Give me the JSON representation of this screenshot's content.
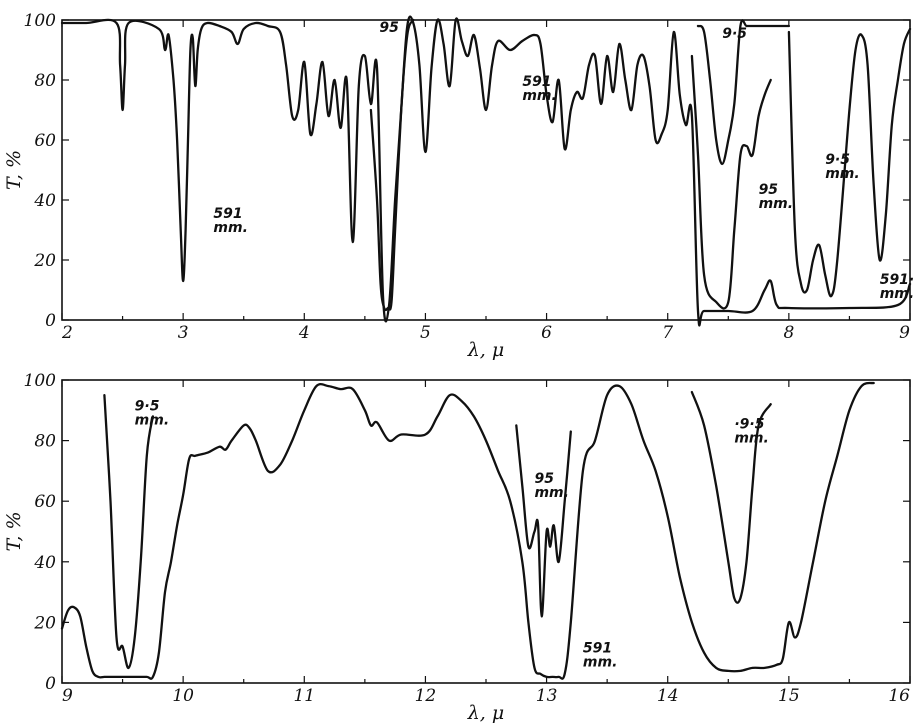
{
  "chart_data": [
    {
      "type": "line",
      "title": "",
      "xlabel": "λ, μ",
      "ylabel": "T, %",
      "xlim": [
        2,
        9
      ],
      "ylim": [
        0,
        100
      ],
      "xticks": [
        "2",
        "3",
        "4",
        "5",
        "6",
        "7",
        "8",
        "9"
      ],
      "yticks": [
        "0",
        "20",
        "40",
        "60",
        "80",
        "100"
      ],
      "grid": false,
      "series": [
        {
          "name": "591 mm.",
          "x": [
            2.0,
            2.2,
            2.45,
            2.48,
            2.5,
            2.52,
            2.55,
            2.8,
            2.85,
            2.88,
            2.92,
            2.95,
            2.98,
            3.0,
            3.02,
            3.04,
            3.06,
            3.08,
            3.1,
            3.12,
            3.15,
            3.2,
            3.3,
            3.4,
            3.45,
            3.5,
            3.6,
            3.7,
            3.8,
            3.85,
            3.9,
            3.95,
            4.0,
            4.05,
            4.1,
            4.15,
            4.2,
            4.25,
            4.3,
            4.35,
            4.4,
            4.45,
            4.5,
            4.55,
            4.6,
            4.65,
            4.7,
            4.75,
            4.8,
            4.85,
            4.9,
            4.95,
            5.0,
            5.05,
            5.1,
            5.15,
            5.2,
            5.25,
            5.3,
            5.35,
            5.4,
            5.45,
            5.5,
            5.55,
            5.6,
            5.7,
            5.8,
            5.9,
            5.95,
            6.0,
            6.05,
            6.1,
            6.15,
            6.2,
            6.25,
            6.3,
            6.35,
            6.4,
            6.45,
            6.5,
            6.55,
            6.6,
            6.65,
            6.7,
            6.75,
            6.8,
            6.85,
            6.9,
            6.95,
            7.0,
            7.05,
            7.1,
            7.15,
            7.2,
            7.25,
            7.3,
            7.5,
            7.7,
            7.8,
            7.85,
            7.9,
            8.0,
            8.5,
            8.9,
            9.0
          ],
          "y": [
            99,
            99,
            99,
            85,
            70,
            85,
            99,
            97,
            90,
            95,
            80,
            60,
            30,
            13,
            30,
            60,
            90,
            94,
            78,
            90,
            97,
            99,
            98,
            96,
            92,
            97,
            99,
            98,
            96,
            85,
            68,
            70,
            86,
            62,
            72,
            86,
            68,
            80,
            64,
            80,
            26,
            78,
            88,
            72,
            84,
            8,
            5,
            40,
            70,
            98,
            99,
            85,
            56,
            84,
            100,
            92,
            78,
            100,
            93,
            88,
            95,
            84,
            70,
            85,
            93,
            90,
            93,
            95,
            92,
            75,
            66,
            80,
            57,
            70,
            76,
            74,
            85,
            88,
            72,
            88,
            76,
            92,
            80,
            70,
            85,
            88,
            78,
            60,
            62,
            70,
            96,
            75,
            65,
            68,
            3,
            3,
            3,
            3,
            10,
            13,
            5,
            4,
            4,
            5,
            12
          ]
        },
        {
          "name": "95 mm.",
          "x": [
            4.55,
            4.6,
            4.63,
            4.66,
            4.69,
            4.72,
            4.75,
            4.8,
            4.85,
            4.9
          ],
          "y": [
            70,
            40,
            12,
            4,
            4,
            6,
            30,
            70,
            95,
            100
          ]
        },
        {
          "name": "95 mm.",
          "x": [
            7.2,
            7.25,
            7.3,
            7.4,
            7.5,
            7.55,
            7.6,
            7.65,
            7.7,
            7.75,
            7.8,
            7.85
          ],
          "y": [
            88,
            55,
            15,
            6,
            6,
            30,
            55,
            58,
            55,
            68,
            75,
            80
          ]
        },
        {
          "name": "9·5",
          "x": [
            7.25,
            7.3,
            7.35,
            7.4,
            7.45,
            7.5,
            7.55,
            7.6,
            7.65,
            7.7,
            7.75,
            7.8,
            7.85,
            7.9,
            7.95,
            8.0
          ],
          "y": [
            98,
            96,
            80,
            60,
            52,
            60,
            72,
            98,
            98,
            98,
            98,
            98,
            98,
            98,
            98,
            98
          ]
        },
        {
          "name": "9·5 mm.",
          "x": [
            8.0,
            8.05,
            8.1,
            8.15,
            8.2,
            8.25,
            8.3,
            8.35,
            8.4,
            8.5,
            8.55,
            8.6,
            8.65,
            8.7,
            8.75,
            8.8,
            8.85,
            8.9,
            8.95,
            9.0
          ],
          "y": [
            96,
            30,
            12,
            10,
            20,
            25,
            15,
            8,
            20,
            70,
            90,
            95,
            85,
            45,
            20,
            35,
            65,
            80,
            92,
            97
          ]
        }
      ],
      "annotations": [
        {
          "text": "591",
          "line2": "mm.",
          "x": 3.25,
          "y": 34
        },
        {
          "text": "95",
          "line2": "",
          "x": 4.62,
          "y": 96
        },
        {
          "text": "591",
          "line2": "mm.",
          "x": 5.8,
          "y": 78
        },
        {
          "text": "9·5",
          "line2": "",
          "x": 7.45,
          "y": 94
        },
        {
          "text": "95",
          "line2": "mm.",
          "x": 7.75,
          "y": 42
        },
        {
          "text": "9·5",
          "line2": "mm.",
          "x": 8.3,
          "y": 52
        },
        {
          "text": "591·",
          "line2": "mm.",
          "x": 8.75,
          "y": 12
        }
      ]
    },
    {
      "type": "line",
      "title": "",
      "xlabel": "λ, μ",
      "ylabel": "T, %",
      "xlim": [
        9,
        16
      ],
      "ylim": [
        0,
        100
      ],
      "xticks": [
        "9",
        "10",
        "11",
        "12",
        "13",
        "14",
        "15",
        "16"
      ],
      "yticks": [
        "0",
        "20",
        "40",
        "60",
        "80",
        "100"
      ],
      "grid": false,
      "series": [
        {
          "name": "591 mm.",
          "x": [
            9.0,
            9.05,
            9.1,
            9.15,
            9.2,
            9.25,
            9.3,
            9.35,
            9.4,
            9.5,
            9.6,
            9.7,
            9.75,
            9.8,
            9.85,
            9.9,
            9.95,
            10.0,
            10.05,
            10.1,
            10.2,
            10.3,
            10.35,
            10.4,
            10.5,
            10.55,
            10.6,
            10.7,
            10.8,
            10.9,
            11.0,
            11.1,
            11.2,
            11.3,
            11.4,
            11.5,
            11.55,
            11.6,
            11.7,
            11.8,
            12.0,
            12.1,
            12.2,
            12.3,
            12.4,
            12.5,
            12.6,
            12.7,
            12.8,
            12.85,
            12.9,
            12.95,
            13.0,
            13.05,
            13.1,
            13.15,
            13.2,
            13.3,
            13.4,
            13.5,
            13.6,
            13.7,
            13.8,
            13.9,
            14.0,
            14.1,
            14.2,
            14.3,
            14.4,
            14.5,
            14.6,
            14.7,
            14.8,
            14.9,
            14.95,
            15.0,
            15.05,
            15.1,
            15.2,
            15.3,
            15.4,
            15.5,
            15.6,
            15.7
          ],
          "y": [
            18,
            24,
            25,
            22,
            12,
            4,
            2,
            2,
            2,
            2,
            2,
            2,
            2,
            10,
            30,
            40,
            52,
            62,
            74,
            75,
            76,
            78,
            77,
            80,
            85,
            84,
            80,
            70,
            72,
            80,
            90,
            98,
            98,
            97,
            97,
            90,
            85,
            86,
            80,
            82,
            82,
            88,
            95,
            93,
            88,
            80,
            70,
            60,
            40,
            20,
            5,
            3,
            2,
            2,
            2,
            3,
            20,
            70,
            80,
            95,
            98,
            92,
            80,
            70,
            55,
            35,
            20,
            10,
            5,
            4,
            4,
            5,
            5,
            6,
            8,
            20,
            15,
            20,
            40,
            60,
            75,
            90,
            98,
            99
          ]
        },
        {
          "name": "9·5 mm.",
          "x": [
            9.35,
            9.4,
            9.45,
            9.5,
            9.55,
            9.6,
            9.65,
            9.7,
            9.75
          ],
          "y": [
            95,
            60,
            15,
            12,
            5,
            15,
            40,
            75,
            88
          ]
        },
        {
          "name": "95 mm.",
          "x": [
            12.75,
            12.8,
            12.85,
            12.9,
            12.93,
            12.96,
            13.0,
            13.03,
            13.06,
            13.1,
            13.15,
            13.2
          ],
          "y": [
            85,
            65,
            45,
            50,
            52,
            22,
            50,
            45,
            52,
            40,
            60,
            83
          ]
        },
        {
          "name": "9·5 mm.",
          "x": [
            14.2,
            14.3,
            14.4,
            14.5,
            14.55,
            14.6,
            14.65,
            14.7,
            14.75,
            14.85
          ],
          "y": [
            96,
            85,
            65,
            40,
            28,
            28,
            40,
            65,
            85,
            92
          ]
        }
      ],
      "annotations": [
        {
          "text": "9·5",
          "line2": "mm.",
          "x": 9.6,
          "y": 90
        },
        {
          "text": "95",
          "line2": "mm.",
          "x": 12.9,
          "y": 66
        },
        {
          "text": "591",
          "line2": "mm.",
          "x": 13.3,
          "y": 10
        },
        {
          "text": "·9·5",
          "line2": "mm.",
          "x": 14.55,
          "y": 84
        }
      ]
    }
  ]
}
